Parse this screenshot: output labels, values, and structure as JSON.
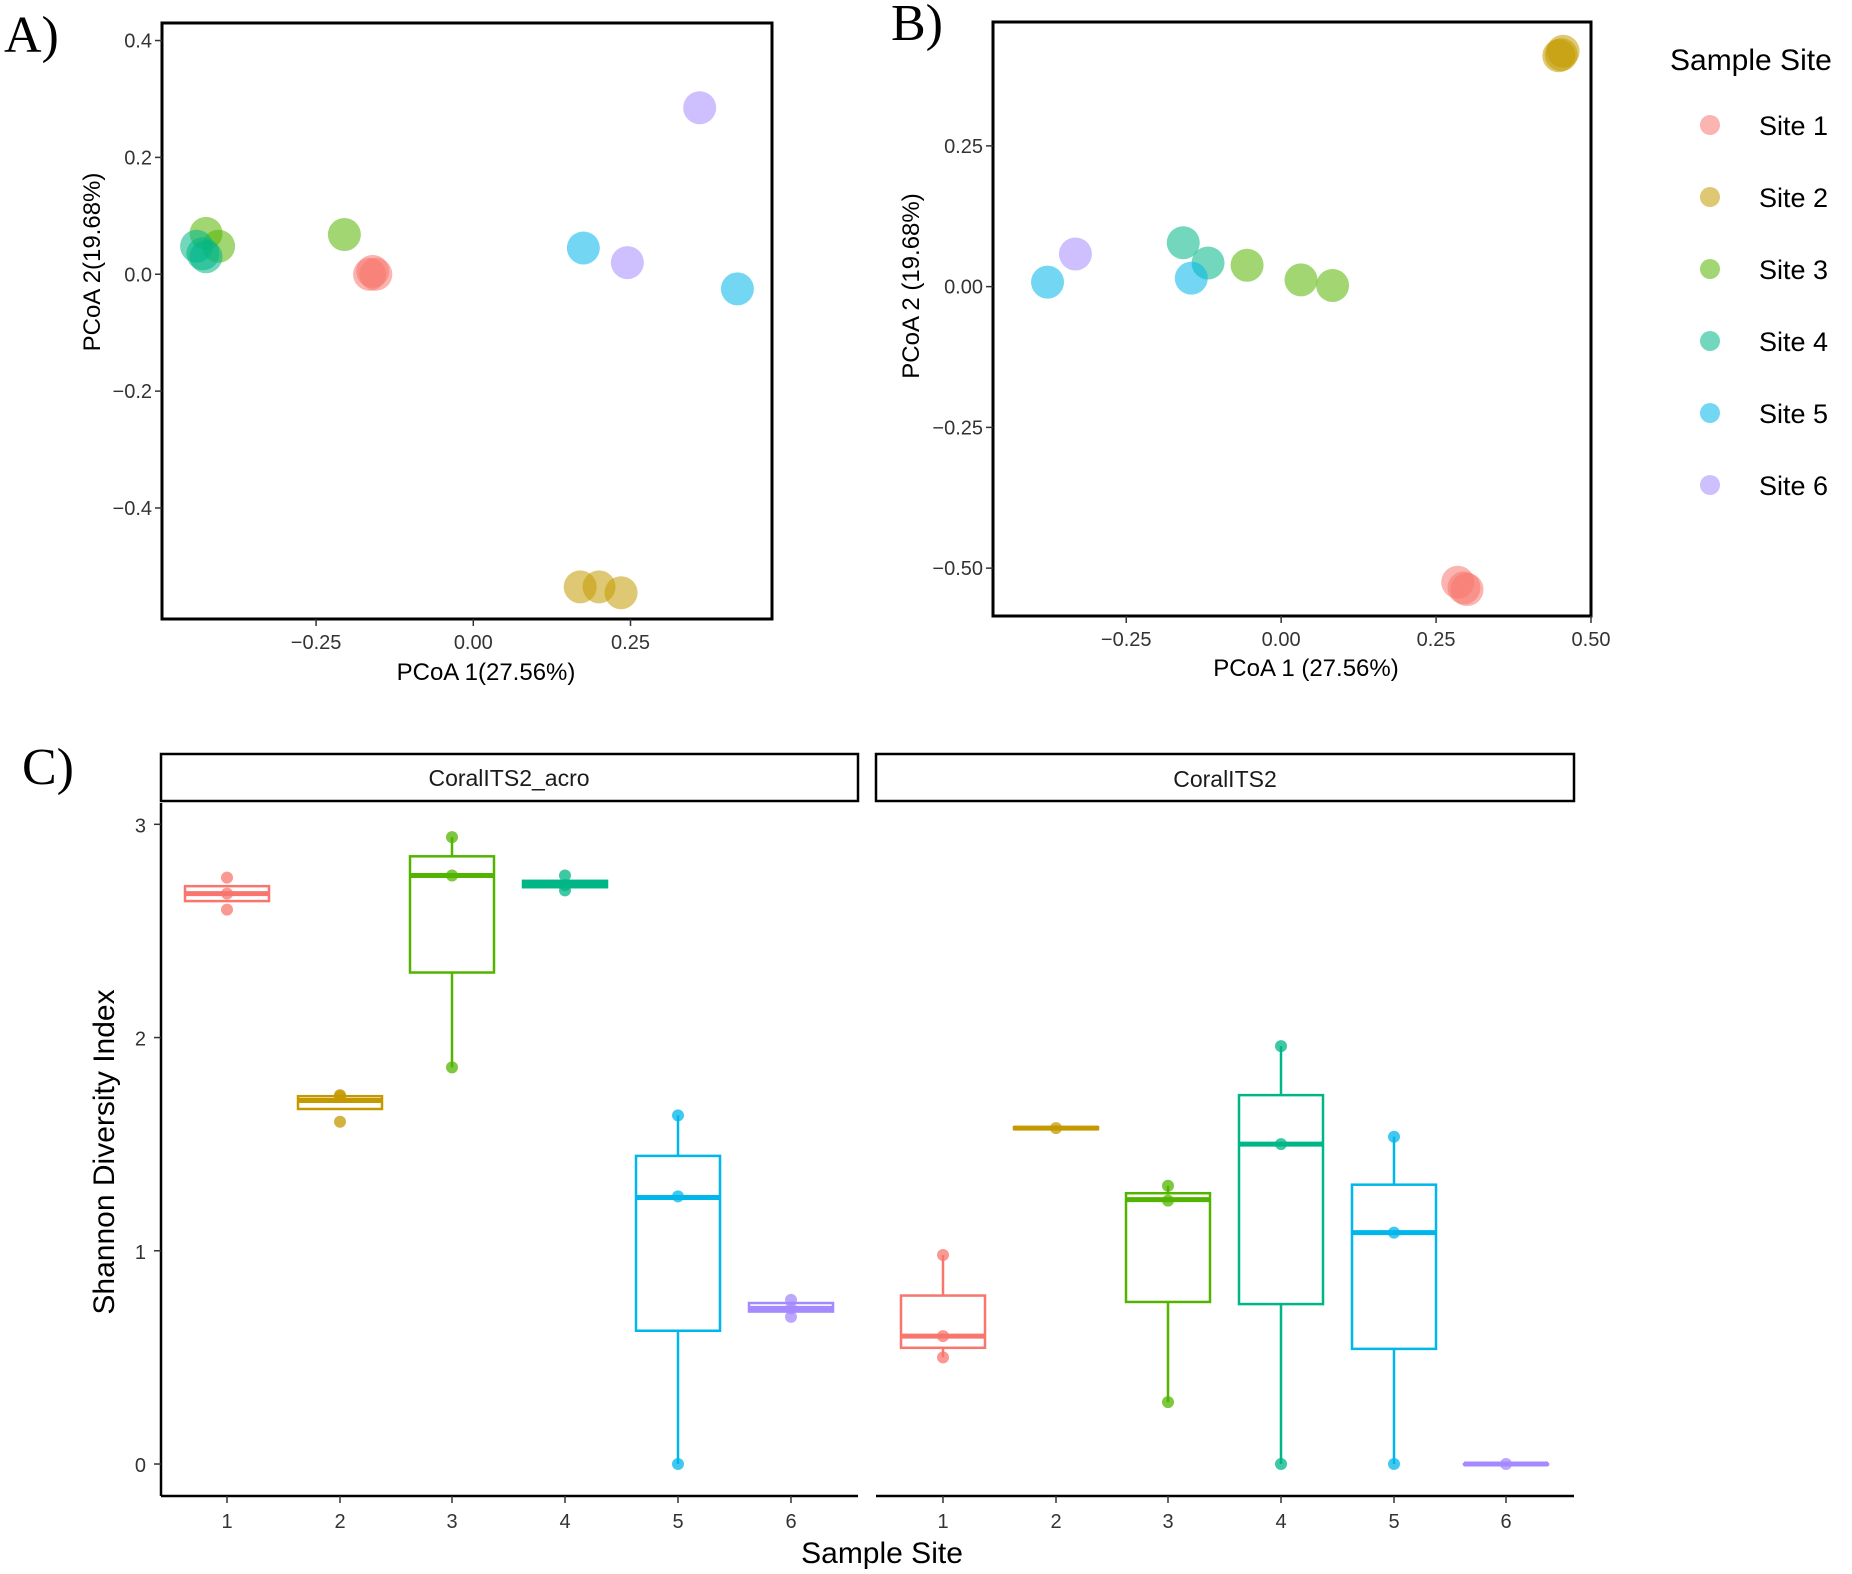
{
  "figure": {
    "panel_a": "A)",
    "panel_b": "B)",
    "panel_c": "C)"
  },
  "colors": {
    "Site 1": "#F8766D",
    "Site 2": "#C49A00",
    "Site 3": "#53B400",
    "Site 4": "#00B686",
    "Site 5": "#00B6EB",
    "Site 6": "#A58AFF"
  },
  "legend": {
    "title": "Sample Site",
    "items": [
      "Site 1",
      "Site 2",
      "Site 3",
      "Site 4",
      "Site 5",
      "Site 6"
    ]
  },
  "chart_data": [
    {
      "id": "A",
      "type": "scatter",
      "xlabel": "PCoA 1(27.56%)",
      "ylabel": "PCoA 2(19.68%)",
      "xlim": [
        -0.495,
        0.475
      ],
      "ylim": [
        -0.59,
        0.43
      ],
      "xticks": [
        -0.25,
        0.0,
        0.25
      ],
      "xtick_labels": [
        "−0.25",
        "0.00",
        "0.25"
      ],
      "yticks": [
        0.4,
        0.2,
        0.0,
        -0.2,
        -0.4
      ],
      "ytick_labels": [
        "0.4",
        "0.2",
        "0.0",
        "−0.2",
        "−0.4"
      ],
      "points": [
        {
          "site": "Site 1",
          "x": -0.16,
          "y": 0.005
        },
        {
          "site": "Site 1",
          "x": -0.155,
          "y": 0.0
        },
        {
          "site": "Site 1",
          "x": -0.165,
          "y": 0.0
        },
        {
          "site": "Site 2",
          "x": 0.17,
          "y": -0.535
        },
        {
          "site": "Site 2",
          "x": 0.2,
          "y": -0.535
        },
        {
          "site": "Site 2",
          "x": 0.235,
          "y": -0.545
        },
        {
          "site": "Site 3",
          "x": -0.425,
          "y": 0.07
        },
        {
          "site": "Site 3",
          "x": -0.405,
          "y": 0.048
        },
        {
          "site": "Site 3",
          "x": -0.205,
          "y": 0.068
        },
        {
          "site": "Site 4",
          "x": -0.44,
          "y": 0.048
        },
        {
          "site": "Site 4",
          "x": -0.43,
          "y": 0.035
        },
        {
          "site": "Site 4",
          "x": -0.425,
          "y": 0.03
        },
        {
          "site": "Site 5",
          "x": 0.175,
          "y": 0.045
        },
        {
          "site": "Site 5",
          "x": 0.42,
          "y": -0.025
        },
        {
          "site": "Site 6",
          "x": 0.245,
          "y": 0.02
        },
        {
          "site": "Site 6",
          "x": 0.36,
          "y": 0.285
        }
      ]
    },
    {
      "id": "B",
      "type": "scatter",
      "xlabel": "PCoA 1 (27.56%)",
      "ylabel": "PCoA 2 (19.68%)",
      "xlim": [
        -0.465,
        0.5
      ],
      "ylim": [
        -0.585,
        0.47
      ],
      "xticks": [
        -0.25,
        0.0,
        0.25,
        0.5
      ],
      "xtick_labels": [
        "−0.25",
        "0.00",
        "0.25",
        "0.50"
      ],
      "yticks": [
        0.25,
        0.0,
        -0.25,
        -0.5
      ],
      "ytick_labels": [
        "0.25",
        "0.00",
        "−0.25",
        "−0.50"
      ],
      "points": [
        {
          "site": "Site 1",
          "x": 0.285,
          "y": -0.525
        },
        {
          "site": "Site 1",
          "x": 0.295,
          "y": -0.535
        },
        {
          "site": "Site 1",
          "x": 0.3,
          "y": -0.538
        },
        {
          "site": "Site 2",
          "x": 0.452,
          "y": 0.412
        },
        {
          "site": "Site 2",
          "x": 0.448,
          "y": 0.41
        },
        {
          "site": "Site 2",
          "x": 0.455,
          "y": 0.418
        },
        {
          "site": "Site 3",
          "x": -0.055,
          "y": 0.038
        },
        {
          "site": "Site 3",
          "x": 0.032,
          "y": 0.012
        },
        {
          "site": "Site 3",
          "x": 0.083,
          "y": 0.002
        },
        {
          "site": "Site 4",
          "x": -0.158,
          "y": 0.078
        },
        {
          "site": "Site 4",
          "x": -0.118,
          "y": 0.042
        },
        {
          "site": "Site 5",
          "x": -0.377,
          "y": 0.008
        },
        {
          "site": "Site 5",
          "x": -0.145,
          "y": 0.015
        },
        {
          "site": "Site 6",
          "x": -0.332,
          "y": 0.058
        }
      ]
    },
    {
      "id": "C",
      "type": "box",
      "xlabel": "Sample Site",
      "ylabel": "Shannon Diversity Index",
      "ylim": [
        -0.15,
        3.1
      ],
      "yticks": [
        0,
        1,
        2,
        3
      ],
      "ytick_labels": [
        "0",
        "1",
        "2",
        "3"
      ],
      "categories": [
        "1",
        "2",
        "3",
        "4",
        "5",
        "6"
      ],
      "facets": [
        {
          "label": "CoralITS2_acro",
          "boxes": [
            {
              "site": "Site 1",
              "q1": 2.64,
              "median": 2.675,
              "q3": 2.71,
              "wlow": 2.64,
              "whigh": 2.71,
              "points": [
                2.6,
                2.675,
                2.75
              ]
            },
            {
              "site": "Site 2",
              "q1": 1.665,
              "median": 1.705,
              "q3": 1.725,
              "wlow": 1.665,
              "whigh": 1.725,
              "points": [
                1.605,
                1.725,
                1.73
              ]
            },
            {
              "site": "Site 3",
              "q1": 2.305,
              "median": 2.76,
              "q3": 2.85,
              "wlow": 1.86,
              "whigh": 2.94,
              "points": [
                1.86,
                2.76,
                2.94
              ]
            },
            {
              "site": "Site 4",
              "q1": 2.705,
              "median": 2.72,
              "q3": 2.735,
              "wlow": 2.705,
              "whigh": 2.735,
              "points": [
                2.69,
                2.715,
                2.76
              ]
            },
            {
              "site": "Site 5",
              "q1": 0.625,
              "median": 1.25,
              "q3": 1.445,
              "wlow": 0.0,
              "whigh": 1.635,
              "points": [
                0.0,
                1.255,
                1.635
              ]
            },
            {
              "site": "Site 6",
              "q1": 0.715,
              "median": 0.73,
              "q3": 0.755,
              "wlow": 0.715,
              "whigh": 0.755,
              "points": [
                0.69,
                0.73,
                0.77
              ]
            }
          ]
        },
        {
          "label": "CoralITS2",
          "boxes": [
            {
              "site": "Site 1",
              "q1": 0.545,
              "median": 0.6,
              "q3": 0.79,
              "wlow": 0.5,
              "whigh": 0.98,
              "points": [
                0.5,
                0.6,
                0.98
              ]
            },
            {
              "site": "Site 2",
              "q1": 1.57,
              "median": 1.575,
              "q3": 1.58,
              "wlow": 1.57,
              "whigh": 1.58,
              "points": [
                1.575
              ]
            },
            {
              "site": "Site 3",
              "q1": 0.76,
              "median": 1.24,
              "q3": 1.27,
              "wlow": 0.29,
              "whigh": 1.305,
              "points": [
                0.29,
                1.235,
                1.305
              ]
            },
            {
              "site": "Site 4",
              "q1": 0.75,
              "median": 1.5,
              "q3": 1.73,
              "wlow": 0.0,
              "whigh": 1.96,
              "points": [
                0.0,
                1.5,
                1.96
              ]
            },
            {
              "site": "Site 5",
              "q1": 0.54,
              "median": 1.085,
              "q3": 1.31,
              "wlow": 0.0,
              "whigh": 1.535,
              "points": [
                0.0,
                1.085,
                1.535
              ]
            },
            {
              "site": "Site 6",
              "q1": 0.0,
              "median": 0.0,
              "q3": 0.0,
              "wlow": 0.0,
              "whigh": 0.0,
              "points": [
                0.0
              ]
            }
          ]
        }
      ]
    }
  ]
}
